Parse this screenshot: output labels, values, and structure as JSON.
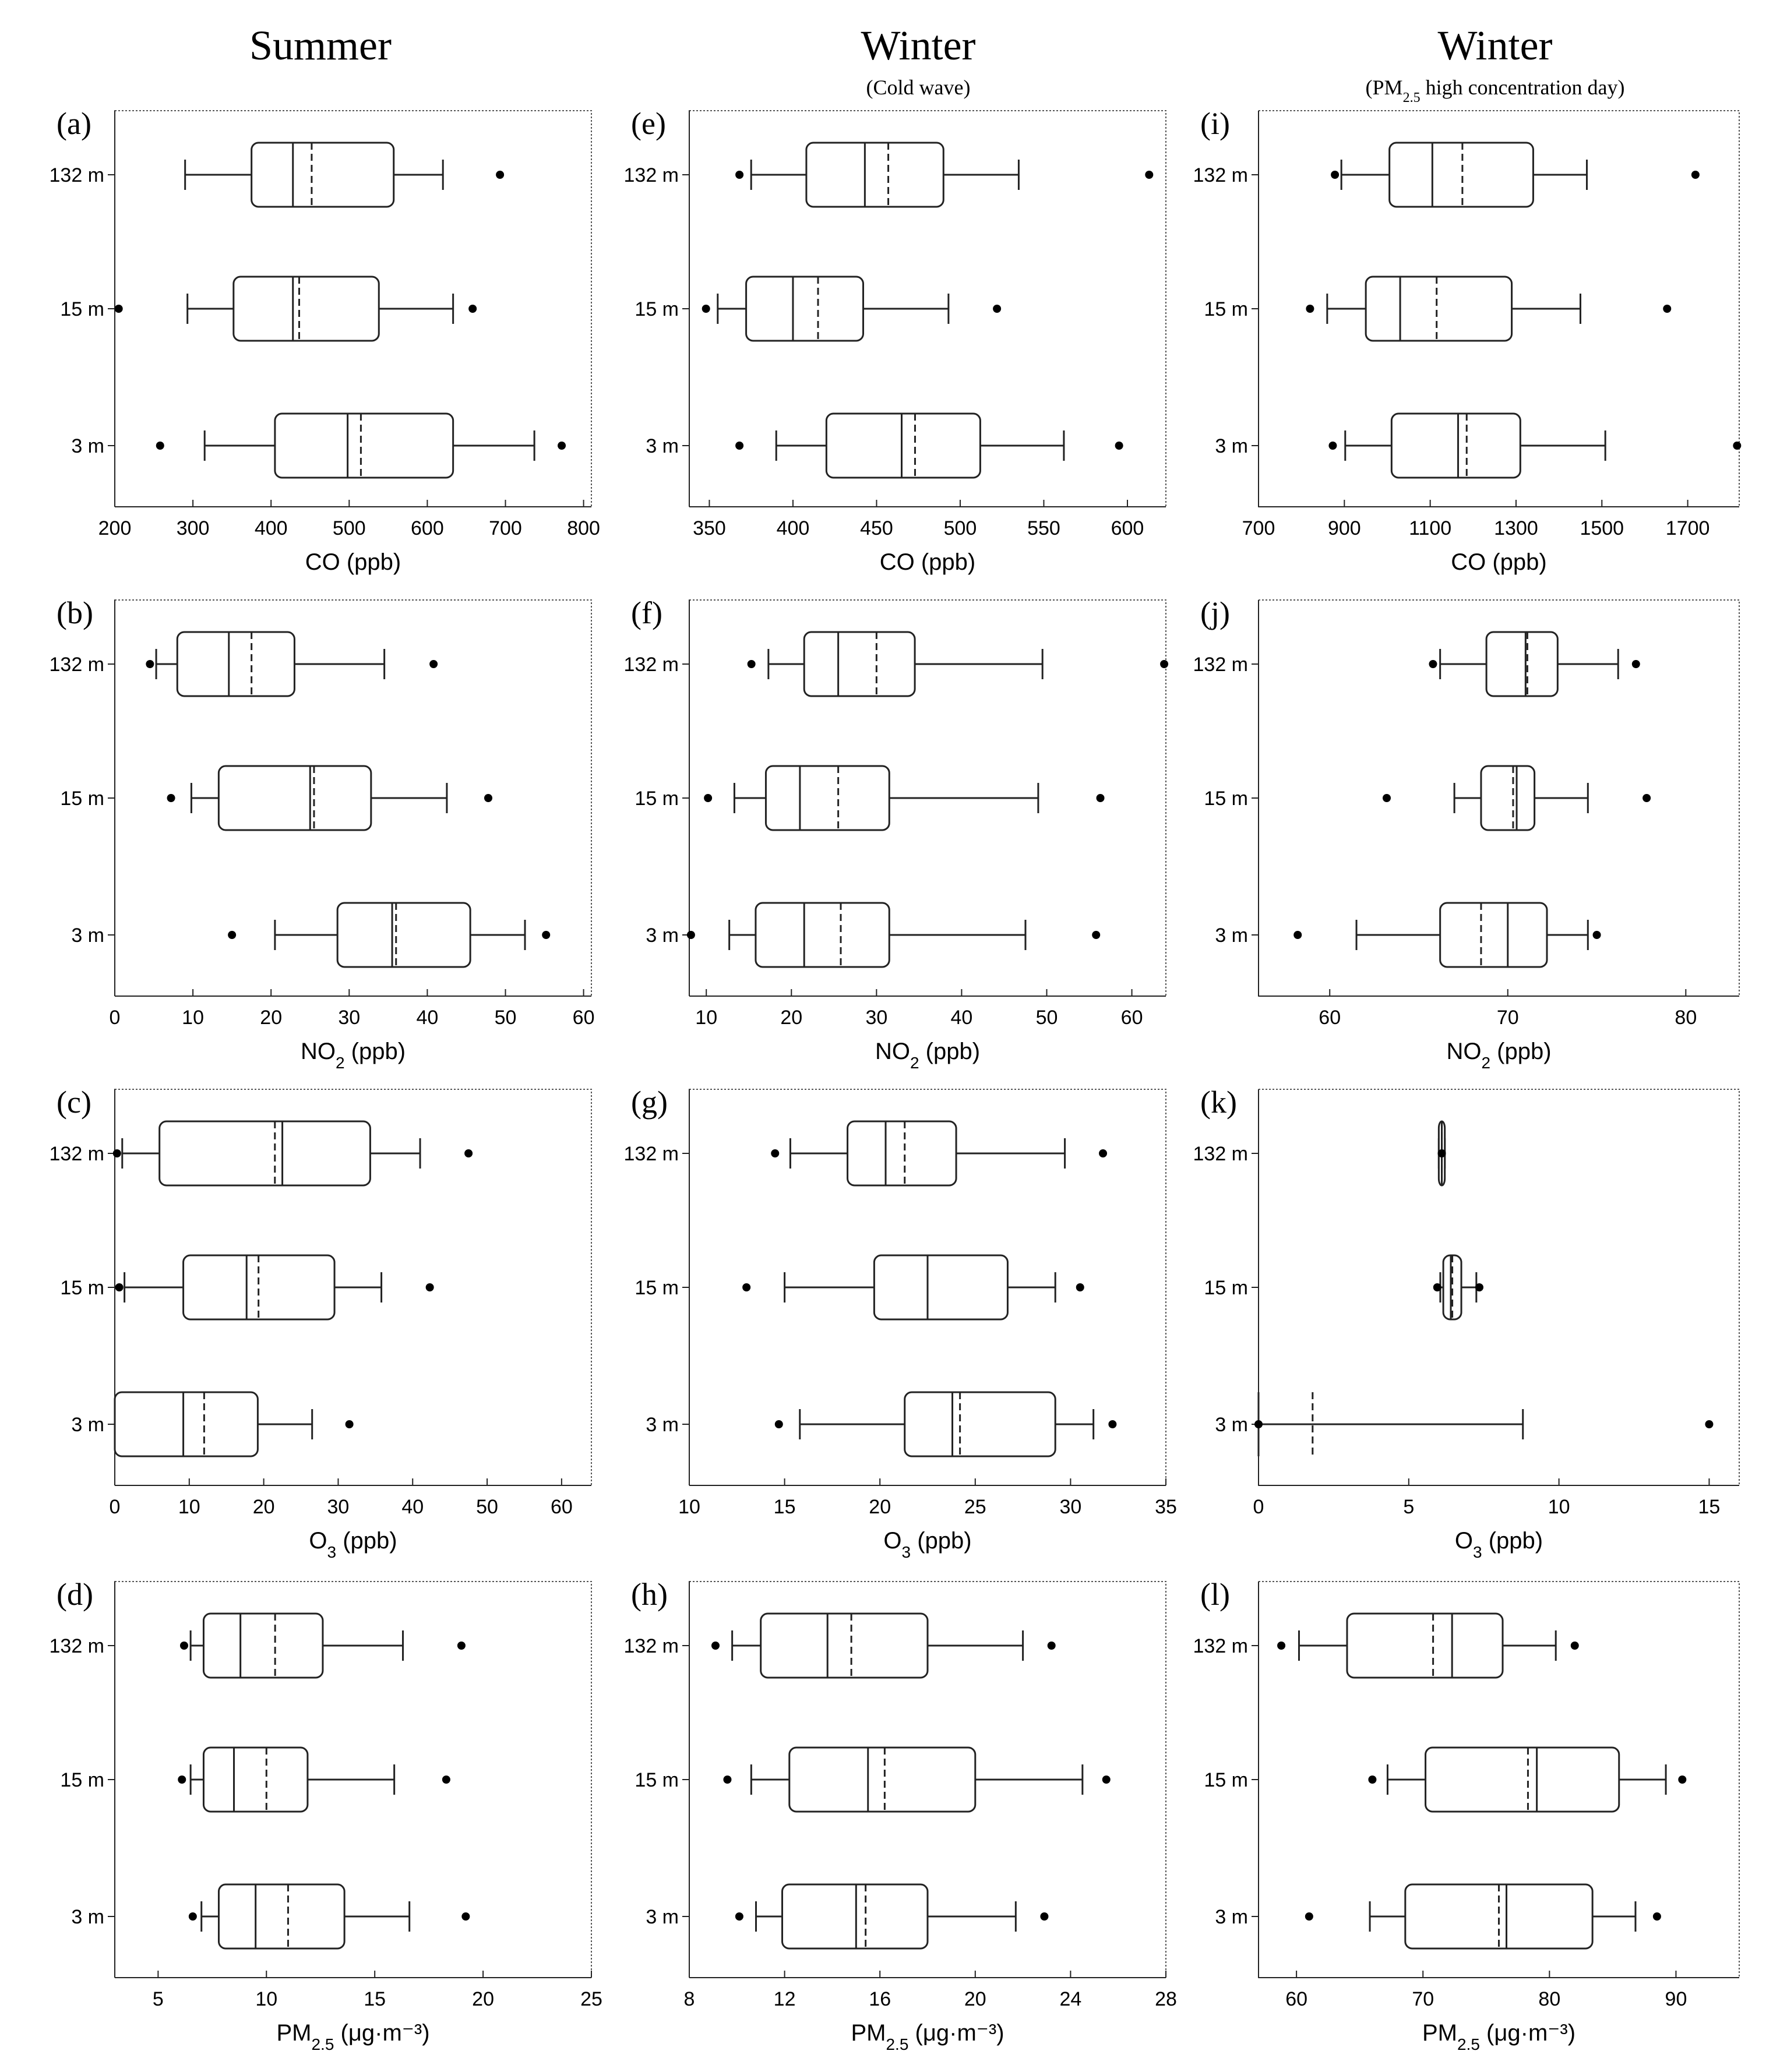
{
  "columns": [
    {
      "title": "Summer",
      "subtitle_parts": []
    },
    {
      "title": "Winter",
      "subtitle_parts": [
        "(Cold wave)"
      ]
    },
    {
      "title": "Winter",
      "subtitle_parts": [
        "(PM",
        "2.5",
        " high concentration day)"
      ]
    }
  ],
  "heights": [
    "132 m",
    "15 m",
    "3 m"
  ],
  "rows": [
    {
      "label_main": "CO (ppb)",
      "label_sub": "",
      "label_tail": ""
    },
    {
      "label_main": "NO",
      "label_sub": "2",
      "label_tail": " (ppb)"
    },
    {
      "label_main": "O",
      "label_sub": "3",
      "label_tail": " (ppb)"
    },
    {
      "label_main": "PM",
      "label_sub": "2.5",
      "label_tail": " (μg·m⁻³)"
    }
  ],
  "chart_data": [
    {
      "id": "a",
      "type": "boxplot",
      "label": "(a)",
      "xlabel": "CO (ppb)",
      "xlim": [
        200,
        810
      ],
      "xticks": [
        200,
        300,
        400,
        500,
        600,
        700,
        800
      ],
      "series": [
        {
          "name": "132 m",
          "whisker_low": 290,
          "q1": 375,
          "median": 428,
          "mean": 452,
          "q3": 557,
          "whisker_high": 620,
          "outliers": [
            693
          ]
        },
        {
          "name": "15 m",
          "whisker_low": 293,
          "q1": 352,
          "median": 428,
          "mean": 436,
          "q3": 538,
          "whisker_high": 633,
          "outliers": [
            205,
            658
          ]
        },
        {
          "name": "3 m",
          "whisker_low": 315,
          "q1": 405,
          "median": 498,
          "mean": 515,
          "q3": 633,
          "whisker_high": 737,
          "outliers": [
            258,
            772
          ]
        }
      ]
    },
    {
      "id": "e",
      "type": "boxplot",
      "label": "(e)",
      "xlabel": "CO (ppb)",
      "xlim": [
        338,
        623
      ],
      "xticks": [
        350,
        400,
        450,
        500,
        550,
        600
      ],
      "series": [
        {
          "name": "132 m",
          "whisker_low": 375,
          "q1": 408,
          "median": 443,
          "mean": 457,
          "q3": 490,
          "whisker_high": 535,
          "outliers": [
            368,
            613
          ]
        },
        {
          "name": "15 m",
          "whisker_low": 355,
          "q1": 372,
          "median": 400,
          "mean": 415,
          "q3": 442,
          "whisker_high": 493,
          "outliers": [
            348,
            522
          ]
        },
        {
          "name": "3 m",
          "whisker_low": 390,
          "q1": 420,
          "median": 465,
          "mean": 473,
          "q3": 512,
          "whisker_high": 562,
          "outliers": [
            368,
            595
          ]
        }
      ]
    },
    {
      "id": "i",
      "type": "boxplot",
      "label": "(i)",
      "xlabel": "CO (ppb)",
      "xlim": [
        700,
        1820
      ],
      "xticks": [
        700,
        900,
        1100,
        1300,
        1500,
        1700
      ],
      "series": [
        {
          "name": "132 m",
          "whisker_low": 893,
          "q1": 1005,
          "median": 1105,
          "mean": 1175,
          "q3": 1340,
          "whisker_high": 1465,
          "outliers": [
            878,
            1718
          ]
        },
        {
          "name": "15 m",
          "whisker_low": 860,
          "q1": 950,
          "median": 1030,
          "mean": 1115,
          "q3": 1290,
          "whisker_high": 1450,
          "outliers": [
            820,
            1652
          ]
        },
        {
          "name": "3 m",
          "whisker_low": 902,
          "q1": 1010,
          "median": 1165,
          "mean": 1185,
          "q3": 1310,
          "whisker_high": 1508,
          "outliers": [
            873,
            1815
          ]
        }
      ]
    },
    {
      "id": "b",
      "type": "boxplot",
      "label": "(b)",
      "xlabel": "NO2 (ppb)",
      "xlim": [
        0,
        61
      ],
      "xticks": [
        0,
        10,
        20,
        30,
        40,
        50,
        60
      ],
      "series": [
        {
          "name": "132 m",
          "whisker_low": 5.3,
          "q1": 8,
          "median": 14.6,
          "mean": 17.5,
          "q3": 23,
          "whisker_high": 34.5,
          "outliers": [
            4.5,
            40.8
          ]
        },
        {
          "name": "15 m",
          "whisker_low": 9.8,
          "q1": 13.3,
          "median": 25,
          "mean": 25.5,
          "q3": 32.8,
          "whisker_high": 42.5,
          "outliers": [
            7.2,
            47.8
          ]
        },
        {
          "name": "3 m",
          "whisker_low": 20.5,
          "q1": 28.5,
          "median": 35.5,
          "mean": 36,
          "q3": 45.5,
          "whisker_high": 52.5,
          "outliers": [
            15,
            55.2
          ]
        }
      ]
    },
    {
      "id": "f",
      "type": "boxplot",
      "label": "(f)",
      "xlabel": "NO2 (ppb)",
      "xlim": [
        8,
        64
      ],
      "xticks": [
        10,
        20,
        30,
        40,
        50,
        60
      ],
      "series": [
        {
          "name": "132 m",
          "whisker_low": 17.3,
          "q1": 21.5,
          "median": 25.5,
          "mean": 30,
          "q3": 34.5,
          "whisker_high": 49.5,
          "outliers": [
            15.3,
            63.8
          ]
        },
        {
          "name": "15 m",
          "whisker_low": 13.3,
          "q1": 17,
          "median": 21,
          "mean": 25.5,
          "q3": 31.5,
          "whisker_high": 49,
          "outliers": [
            10.2,
            56.3
          ]
        },
        {
          "name": "3 m",
          "whisker_low": 12.7,
          "q1": 15.8,
          "median": 21.5,
          "mean": 25.8,
          "q3": 31.5,
          "whisker_high": 47.5,
          "outliers": [
            8.2,
            55.8
          ]
        }
      ]
    },
    {
      "id": "j",
      "type": "boxplot",
      "label": "(j)",
      "xlabel": "NO2 (ppb)",
      "xlim": [
        56,
        83
      ],
      "xticks": [
        60,
        70,
        80
      ],
      "series": [
        {
          "name": "132 m",
          "whisker_low": 66.2,
          "q1": 68.8,
          "median": 71,
          "mean": 71.1,
          "q3": 72.8,
          "whisker_high": 76.2,
          "outliers": [
            65.8,
            77.2
          ]
        },
        {
          "name": "15 m",
          "whisker_low": 67,
          "q1": 68.5,
          "median": 70.5,
          "mean": 70.3,
          "q3": 71.5,
          "whisker_high": 74.5,
          "outliers": [
            63.2,
            77.8
          ]
        },
        {
          "name": "3 m",
          "whisker_low": 61.5,
          "q1": 66.2,
          "median": 70,
          "mean": 68.5,
          "q3": 72.2,
          "whisker_high": 74.5,
          "outliers": [
            58.2,
            75
          ]
        }
      ]
    },
    {
      "id": "c",
      "type": "boxplot",
      "label": "(c)",
      "xlabel": "O3 (ppb)",
      "xlim": [
        0,
        64
      ],
      "xticks": [
        0,
        10,
        20,
        30,
        40,
        50,
        60
      ],
      "series": [
        {
          "name": "132 m",
          "whisker_low": 1,
          "q1": 6,
          "median": 22.5,
          "mean": 21.5,
          "q3": 34.3,
          "whisker_high": 41,
          "outliers": [
            0.3,
            47.5
          ]
        },
        {
          "name": "15 m",
          "whisker_low": 1.3,
          "q1": 9.2,
          "median": 17.7,
          "mean": 19.3,
          "q3": 29.5,
          "whisker_high": 35.8,
          "outliers": [
            0.6,
            42.3
          ]
        },
        {
          "name": "3 m",
          "whisker_low": 0,
          "q1": 0,
          "median": 9.2,
          "mean": 12,
          "q3": 19.2,
          "whisker_high": 26.5,
          "outliers": [
            31.5
          ]
        }
      ]
    },
    {
      "id": "g",
      "type": "boxplot",
      "label": "(g)",
      "xlabel": "O3 (ppb)",
      "xlim": [
        10,
        35
      ],
      "xticks": [
        10,
        15,
        20,
        25,
        30,
        35
      ],
      "series": [
        {
          "name": "132 m",
          "whisker_low": 15.3,
          "q1": 18.3,
          "median": 20.3,
          "mean": 21.3,
          "q3": 24,
          "whisker_high": 29.7,
          "outliers": [
            14.5,
            31.7
          ]
        },
        {
          "name": "15 m",
          "whisker_low": 15,
          "q1": 19.7,
          "median": 22.5,
          "mean": 22.5,
          "q3": 26.7,
          "whisker_high": 29.2,
          "outliers": [
            13,
            30.5
          ]
        },
        {
          "name": "3 m",
          "whisker_low": 15.8,
          "q1": 21.3,
          "median": 23.8,
          "mean": 24.2,
          "q3": 29.2,
          "whisker_high": 31.2,
          "outliers": [
            14.7,
            32.2
          ]
        }
      ]
    },
    {
      "id": "k",
      "type": "boxplot",
      "label": "(k)",
      "xlabel": "O3 (ppb)",
      "xlim": [
        0,
        16
      ],
      "xticks": [
        0,
        5,
        10,
        15
      ],
      "series": [
        {
          "name": "132 m",
          "whisker_low": 6,
          "q1": 6,
          "median": 6.1,
          "mean": 6.1,
          "q3": 6.2,
          "whisker_high": 6.2,
          "outliers": [
            6.1
          ]
        },
        {
          "name": "15 m",
          "whisker_low": 6.05,
          "q1": 6.15,
          "median": 6.4,
          "mean": 6.45,
          "q3": 6.75,
          "whisker_high": 7.25,
          "outliers": [
            5.95,
            7.35
          ]
        },
        {
          "name": "3 m",
          "whisker_low": 0,
          "q1": 0,
          "median": 0,
          "mean": 1.8,
          "q3": 0,
          "whisker_high": 8.8,
          "outliers": [
            0,
            15
          ]
        }
      ]
    },
    {
      "id": "d",
      "type": "boxplot",
      "label": "(d)",
      "xlabel": "PM2.5 (μg·m⁻³)",
      "xlim": [
        3,
        25
      ],
      "xticks": [
        5,
        10,
        15,
        20,
        25
      ],
      "series": [
        {
          "name": "132 m",
          "whisker_low": 6.5,
          "q1": 7.1,
          "median": 8.8,
          "mean": 10.4,
          "q3": 12.6,
          "whisker_high": 16.3,
          "outliers": [
            6.2,
            19
          ]
        },
        {
          "name": "15 m",
          "whisker_low": 6.5,
          "q1": 7.1,
          "median": 8.5,
          "mean": 10,
          "q3": 11.9,
          "whisker_high": 15.9,
          "outliers": [
            6.1,
            18.3
          ]
        },
        {
          "name": "3 m",
          "whisker_low": 7,
          "q1": 7.8,
          "median": 9.5,
          "mean": 11,
          "q3": 13.6,
          "whisker_high": 16.6,
          "outliers": [
            6.6,
            19.2
          ]
        }
      ]
    },
    {
      "id": "h",
      "type": "boxplot",
      "label": "(h)",
      "xlabel": "PM2.5 (μg·m⁻³)",
      "xlim": [
        8,
        28
      ],
      "xticks": [
        8,
        12,
        16,
        20,
        24,
        28
      ],
      "series": [
        {
          "name": "132 m",
          "whisker_low": 9.8,
          "q1": 11,
          "median": 13.8,
          "mean": 14.8,
          "q3": 18,
          "whisker_high": 22,
          "outliers": [
            9.1,
            23.2
          ]
        },
        {
          "name": "15 m",
          "whisker_low": 10.6,
          "q1": 12.2,
          "median": 15.5,
          "mean": 16.2,
          "q3": 20,
          "whisker_high": 24.5,
          "outliers": [
            9.6,
            25.5
          ]
        },
        {
          "name": "3 m",
          "whisker_low": 10.8,
          "q1": 11.9,
          "median": 15,
          "mean": 15.4,
          "q3": 18,
          "whisker_high": 21.7,
          "outliers": [
            10.1,
            22.9
          ]
        }
      ]
    },
    {
      "id": "l",
      "type": "boxplot",
      "label": "(l)",
      "xlabel": "PM2.5 (μg·m⁻³)",
      "xlim": [
        57,
        95
      ],
      "xticks": [
        60,
        70,
        80,
        90
      ],
      "series": [
        {
          "name": "132 m",
          "whisker_low": 60.2,
          "q1": 64,
          "median": 72.3,
          "mean": 70.8,
          "q3": 76.3,
          "whisker_high": 80.5,
          "outliers": [
            58.8,
            82
          ]
        },
        {
          "name": "15 m",
          "whisker_low": 67.2,
          "q1": 70.2,
          "median": 79,
          "mean": 78.3,
          "q3": 85.5,
          "whisker_high": 89.2,
          "outliers": [
            66,
            90.5
          ]
        },
        {
          "name": "3 m",
          "whisker_low": 65.8,
          "q1": 68.6,
          "median": 76.6,
          "mean": 76,
          "q3": 83.4,
          "whisker_high": 86.8,
          "outliers": [
            61,
            88.5
          ]
        }
      ]
    }
  ]
}
